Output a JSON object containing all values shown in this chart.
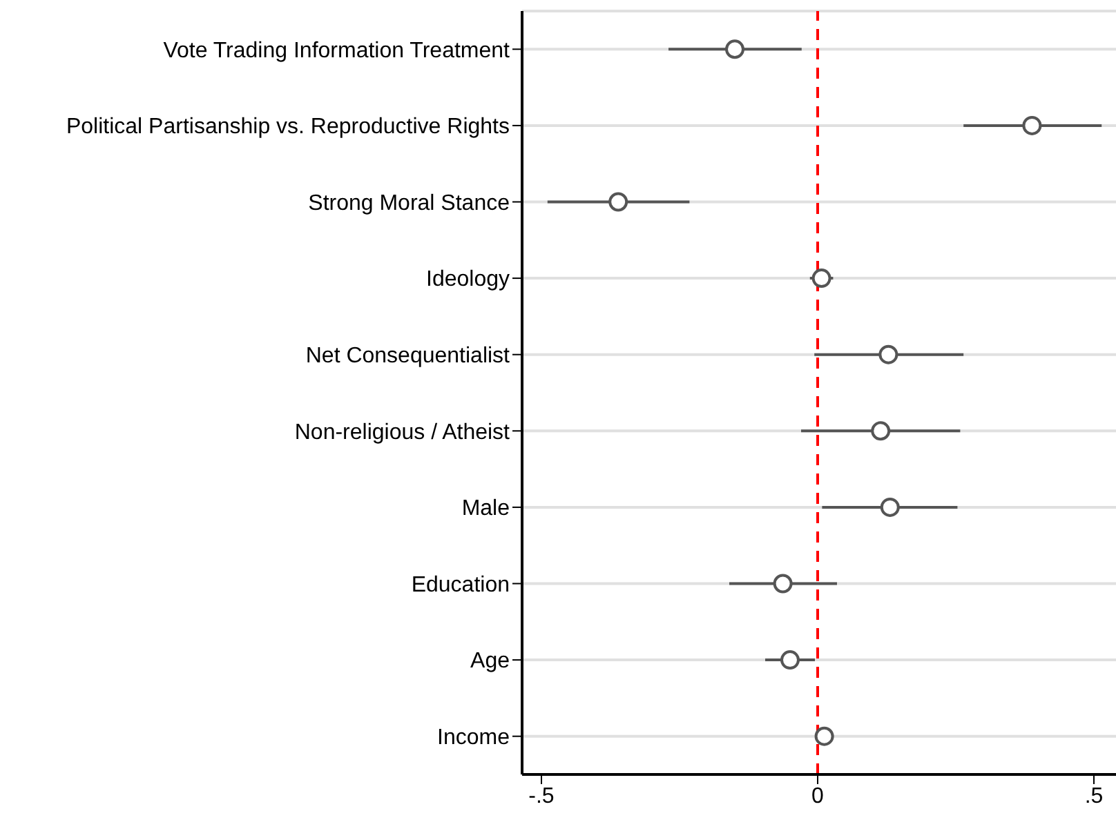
{
  "chart_data": {
    "type": "scatter",
    "categories": [
      "Vote Trading Information Treatment",
      "Political Partisanship vs. Reproductive Rights",
      "Strong Moral Stance",
      "Ideology",
      "Net Consequentialist",
      "Non-religious / Atheist",
      "Male",
      "Education",
      "Age",
      "Income"
    ],
    "orientation": "horizontal",
    "series": [
      {
        "color": "#555555",
        "values": [
          -0.15,
          0.388,
          -0.361,
          0.007,
          0.128,
          0.114,
          0.131,
          -0.063,
          -0.05,
          0.012
        ],
        "errors": [
          [
            -0.27,
            -0.029
          ],
          [
            0.264,
            0.514
          ],
          [
            -0.489,
            -0.232
          ],
          [
            -0.014,
            0.028
          ],
          [
            -0.006,
            0.264
          ],
          [
            -0.03,
            0.258
          ],
          [
            0.008,
            0.253
          ],
          [
            -0.16,
            0.035
          ],
          [
            -0.095,
            -0.005
          ],
          [
            -0.004,
            0.029
          ]
        ]
      }
    ],
    "xlim": [
      -0.535,
      0.54
    ],
    "xticks": [
      {
        "value": -0.5,
        "label": "-.5"
      },
      0,
      {
        "value": 0.5,
        "label": ".5"
      }
    ],
    "ref_lines": [
      {
        "axis": "x",
        "value": 0,
        "color": "#ff0000",
        "line_style": "dashed"
      }
    ],
    "grid": "y",
    "marker": "circle"
  }
}
